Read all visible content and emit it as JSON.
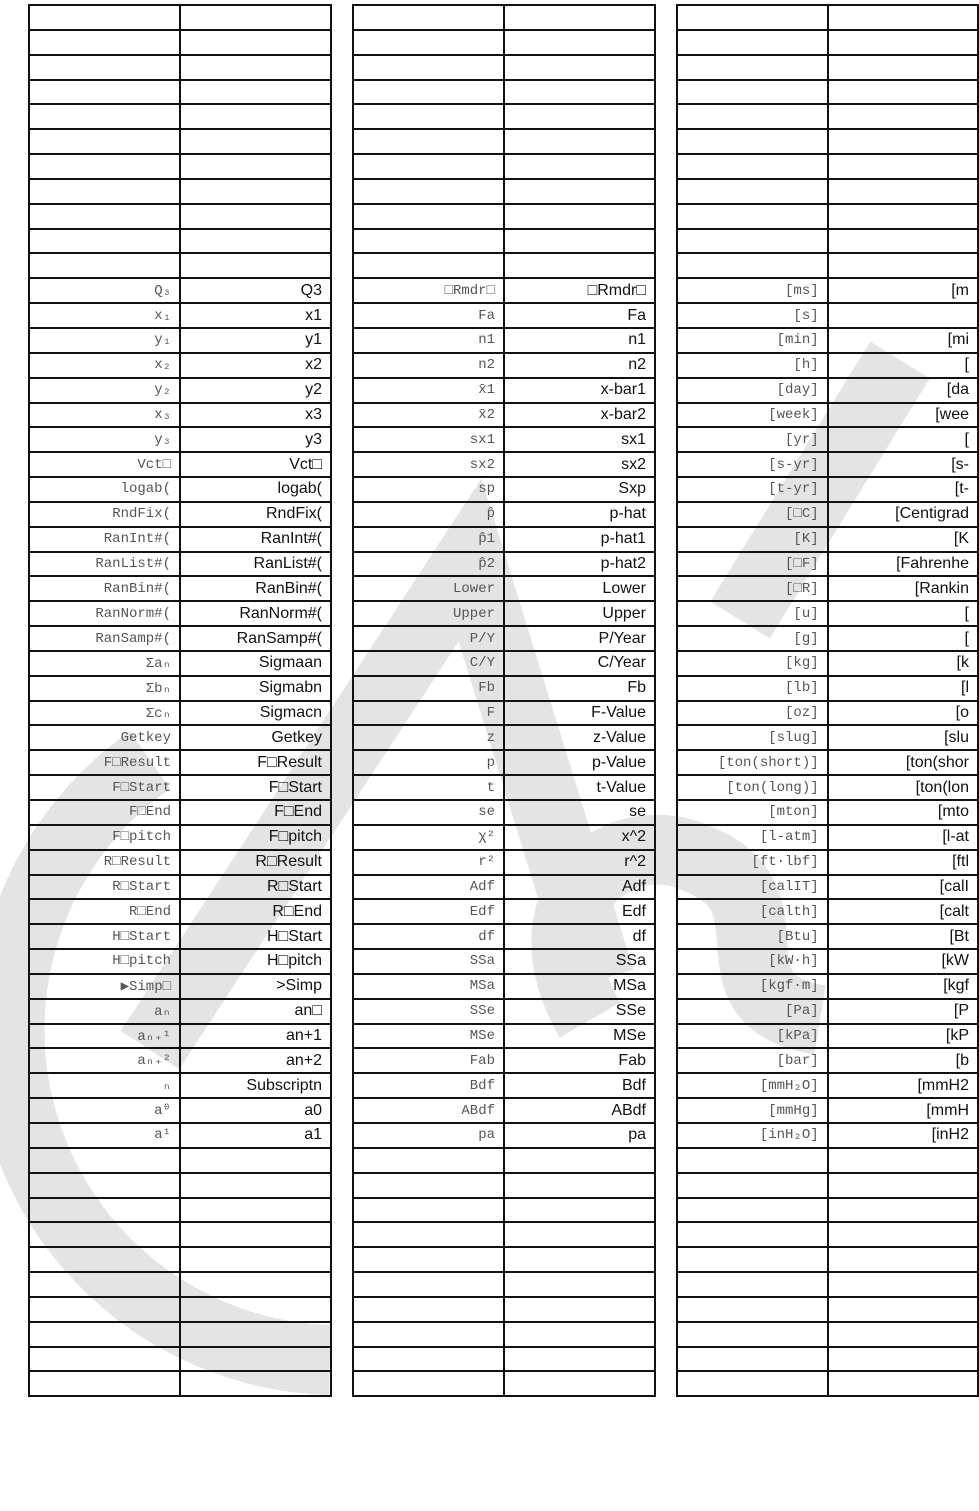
{
  "watermark": "CASIO",
  "tables": [
    {
      "rows": [
        [
          "Q₃",
          "Q3"
        ],
        [
          "x₁",
          "x1"
        ],
        [
          "y₁",
          "y1"
        ],
        [
          "x₂",
          "x2"
        ],
        [
          "y₂",
          "y2"
        ],
        [
          "x₃",
          "x3"
        ],
        [
          "y₃",
          "y3"
        ],
        [
          "Vct□",
          "Vct□"
        ],
        [
          "logab(",
          "logab("
        ],
        [
          "RndFix(",
          "RndFix("
        ],
        [
          "RanInt#(",
          "RanInt#("
        ],
        [
          "RanList#(",
          "RanList#("
        ],
        [
          "RanBin#(",
          "RanBin#("
        ],
        [
          "RanNorm#(",
          "RanNorm#("
        ],
        [
          "RanSamp#(",
          "RanSamp#("
        ],
        [
          "Σaₙ",
          "Sigmaan"
        ],
        [
          "Σbₙ",
          "Sigmabn"
        ],
        [
          "Σcₙ",
          "Sigmacn"
        ],
        [
          "Getkey",
          "Getkey"
        ],
        [
          "F□Result",
          "F□Result"
        ],
        [
          "F□Start",
          "F□Start"
        ],
        [
          "F□End",
          "F□End"
        ],
        [
          "F□pitch",
          "F□pitch"
        ],
        [
          "R□Result",
          "R□Result"
        ],
        [
          "R□Start",
          "R□Start"
        ],
        [
          "R□End",
          "R□End"
        ],
        [
          "H□Start",
          "H□Start"
        ],
        [
          "H□pitch",
          "H□pitch"
        ],
        [
          "▶Simp□",
          ">Simp"
        ],
        [
          "aₙ",
          "an□"
        ],
        [
          "aₙ₊¹",
          "an+1"
        ],
        [
          "aₙ₊²",
          "an+2"
        ],
        [
          "ₙ",
          "Subscriptn"
        ],
        [
          "a⁰",
          "a0"
        ],
        [
          "a¹",
          "a1"
        ]
      ]
    },
    {
      "rows": [
        [
          "□Rmdr□",
          "□Rmdr□"
        ],
        [
          "Fa",
          "Fa"
        ],
        [
          "n1",
          "n1"
        ],
        [
          "n2",
          "n2"
        ],
        [
          "x̄1",
          "x-bar1"
        ],
        [
          "x̄2",
          "x-bar2"
        ],
        [
          "sx1",
          "sx1"
        ],
        [
          "sx2",
          "sx2"
        ],
        [
          "sp",
          "Sxp"
        ],
        [
          "p̂",
          "p-hat"
        ],
        [
          "p̂1",
          "p-hat1"
        ],
        [
          "p̂2",
          "p-hat2"
        ],
        [
          "Lower",
          "Lower"
        ],
        [
          "Upper",
          "Upper"
        ],
        [
          "P/Y",
          "P/Year"
        ],
        [
          "C/Y",
          "C/Year"
        ],
        [
          "Fb",
          "Fb"
        ],
        [
          "F",
          "F-Value"
        ],
        [
          "z",
          "z-Value"
        ],
        [
          "p",
          "p-Value"
        ],
        [
          "t",
          "t-Value"
        ],
        [
          "se",
          "se"
        ],
        [
          "χ²",
          "x^2"
        ],
        [
          "r²",
          "r^2"
        ],
        [
          "Adf",
          "Adf"
        ],
        [
          "Edf",
          "Edf"
        ],
        [
          "df",
          "df"
        ],
        [
          "SSa",
          "SSa"
        ],
        [
          "MSa",
          "MSa"
        ],
        [
          "SSe",
          "SSe"
        ],
        [
          "MSe",
          "MSe"
        ],
        [
          "Fab",
          "Fab"
        ],
        [
          "Bdf",
          "Bdf"
        ],
        [
          "ABdf",
          "ABdf"
        ],
        [
          "pa",
          "pa"
        ]
      ]
    },
    {
      "rows": [
        [
          "[ms]",
          "[m"
        ],
        [
          "[s]",
          ""
        ],
        [
          "[min]",
          "[mi"
        ],
        [
          "[h]",
          "["
        ],
        [
          "[day]",
          "[da"
        ],
        [
          "[week]",
          "[wee"
        ],
        [
          "[yr]",
          "["
        ],
        [
          "[s-yr]",
          "[s-"
        ],
        [
          "[t-yr]",
          "[t-"
        ],
        [
          "[□C]",
          "[Centigrad"
        ],
        [
          "[K]",
          "[K"
        ],
        [
          "[□F]",
          "[Fahrenhe"
        ],
        [
          "[□R]",
          "[Rankin"
        ],
        [
          "[u]",
          "["
        ],
        [
          "[g]",
          "["
        ],
        [
          "[kg]",
          "[k"
        ],
        [
          "[lb]",
          "[l"
        ],
        [
          "[oz]",
          "[o"
        ],
        [
          "[slug]",
          "[slu"
        ],
        [
          "[ton(short)]",
          "[ton(shor"
        ],
        [
          "[ton(long)]",
          "[ton(lon"
        ],
        [
          "[mton]",
          "[mto"
        ],
        [
          "[l-atm]",
          "[l-at"
        ],
        [
          "[ft·lbf]",
          "[ftl"
        ],
        [
          "[calIT]",
          "[calI"
        ],
        [
          "[calth]",
          "[calt"
        ],
        [
          "[Btu]",
          "[Bt"
        ],
        [
          "[kW·h]",
          "[kW"
        ],
        [
          "[kgf·m]",
          "[kgf"
        ],
        [
          "[Pa]",
          "[P"
        ],
        [
          "[kPa]",
          "[kP"
        ],
        [
          "[bar]",
          "[b"
        ],
        [
          "[mmH₂O]",
          "[mmH2"
        ],
        [
          "[mmHg]",
          "[mmH"
        ],
        [
          "[inH₂O]",
          "[inH2"
        ]
      ]
    }
  ]
}
